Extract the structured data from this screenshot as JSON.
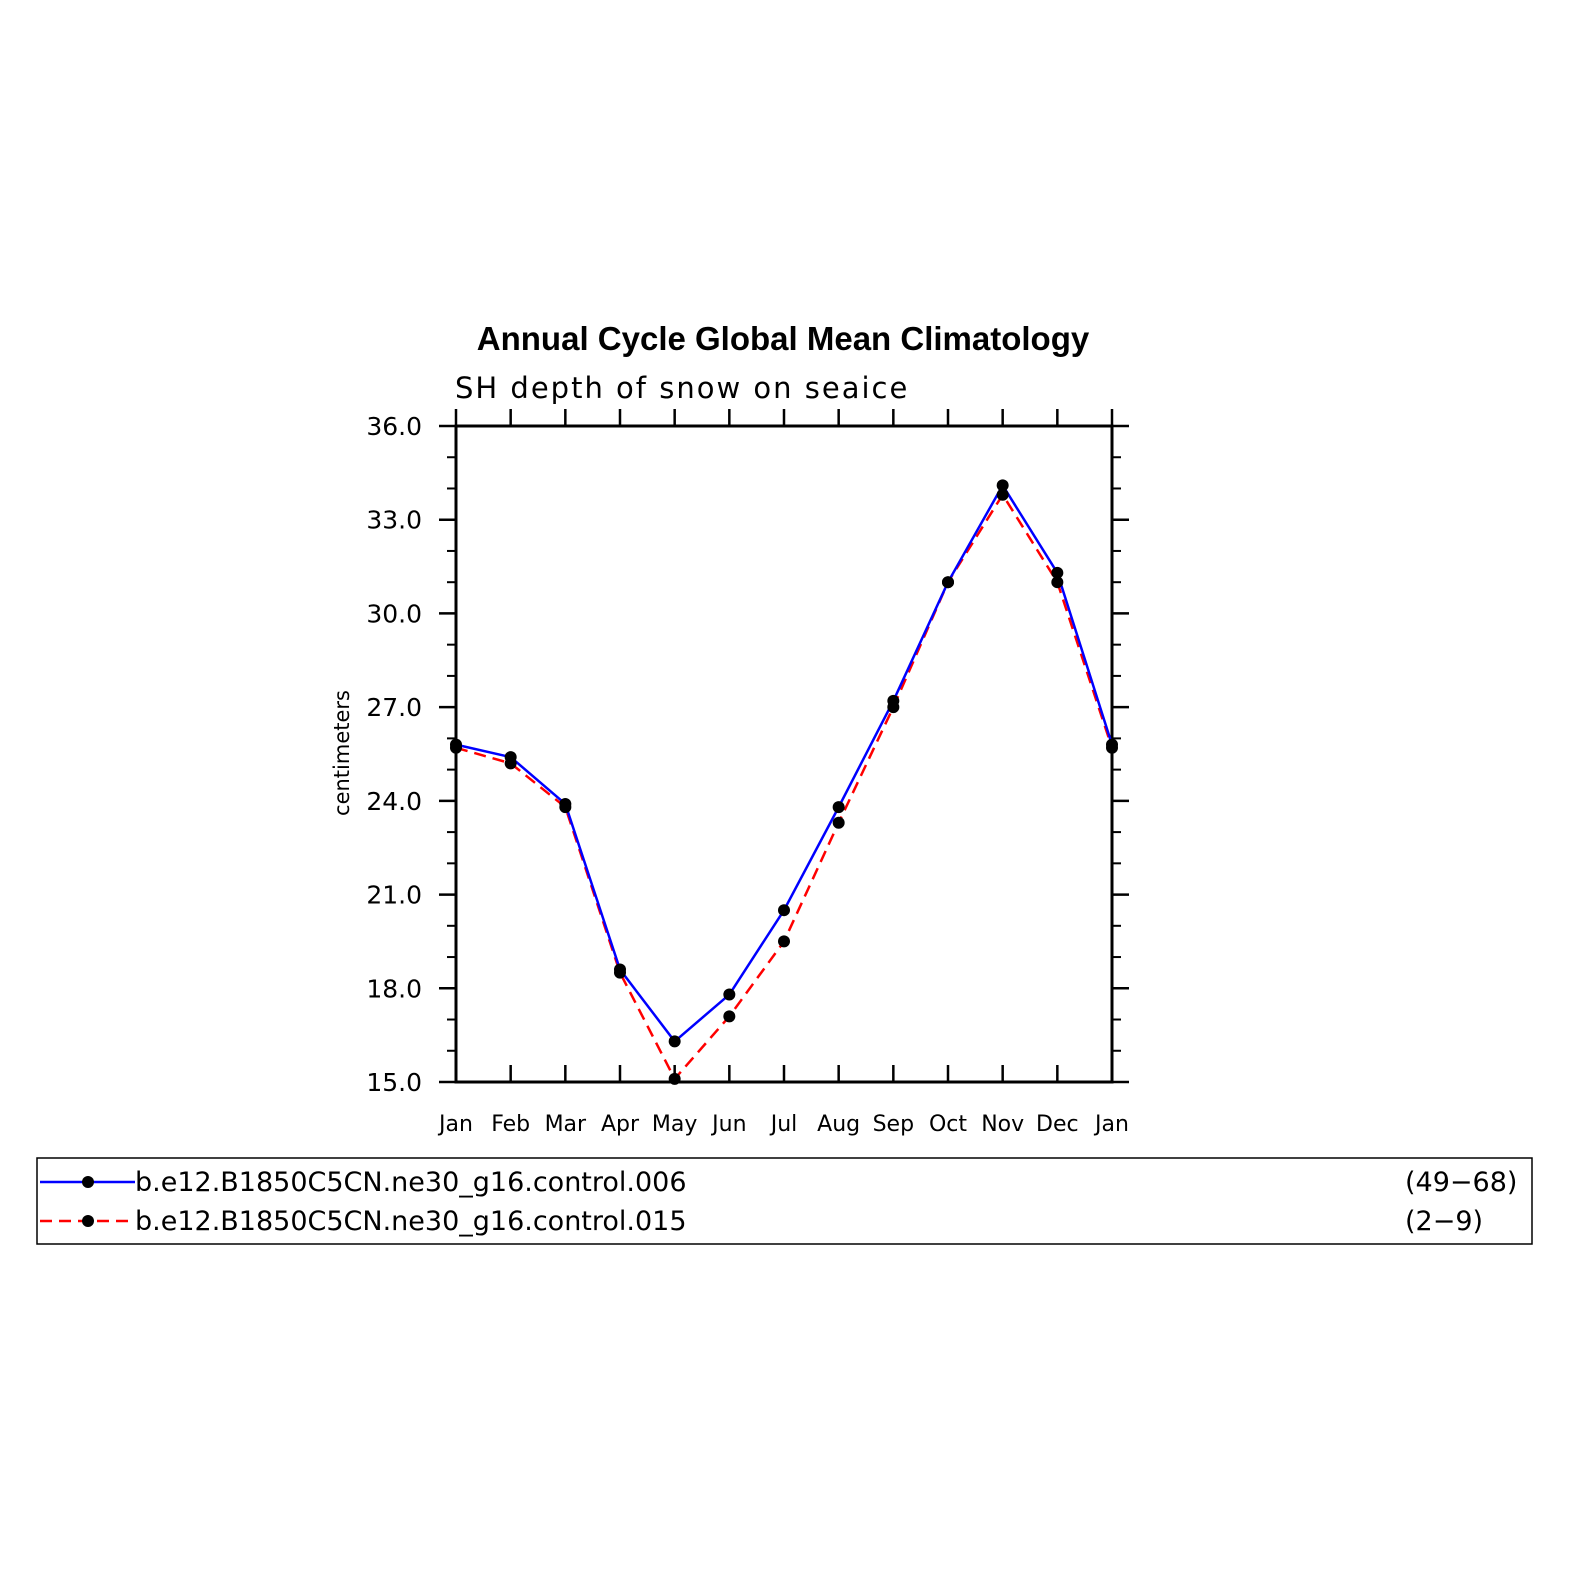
{
  "chart_data": {
    "type": "line",
    "title": "Annual Cycle Global Mean Climatology",
    "subtitle": "SH depth of snow on seaice",
    "xlabel": "",
    "ylabel": "centimeters",
    "categories": [
      "Jan",
      "Feb",
      "Mar",
      "Apr",
      "May",
      "Jun",
      "Jul",
      "Aug",
      "Sep",
      "Oct",
      "Nov",
      "Dec",
      "Jan"
    ],
    "ylim": [
      15.0,
      36.0
    ],
    "yticks": [
      "15.0",
      "18.0",
      "21.0",
      "24.0",
      "27.0",
      "30.0",
      "33.0",
      "36.0"
    ],
    "grid": false,
    "legend_position": "bottom",
    "series": [
      {
        "name": "b.e12.B1850C5CN.ne30_g16.control.006",
        "years": "(49−68)",
        "color": "#0000ff",
        "line_style": "solid",
        "marker": "filled-circle",
        "values": [
          25.8,
          25.4,
          23.9,
          18.6,
          16.3,
          17.8,
          20.5,
          23.8,
          27.2,
          31.0,
          34.1,
          31.3,
          25.8
        ]
      },
      {
        "name": "b.e12.B1850C5CN.ne30_g16.control.015",
        "years": "(2−9)",
        "color": "#ff0000",
        "line_style": "dashed",
        "marker": "filled-circle",
        "values": [
          25.7,
          25.2,
          23.8,
          18.5,
          15.1,
          17.1,
          19.5,
          23.3,
          27.0,
          31.0,
          33.8,
          31.0,
          25.7
        ]
      }
    ]
  }
}
